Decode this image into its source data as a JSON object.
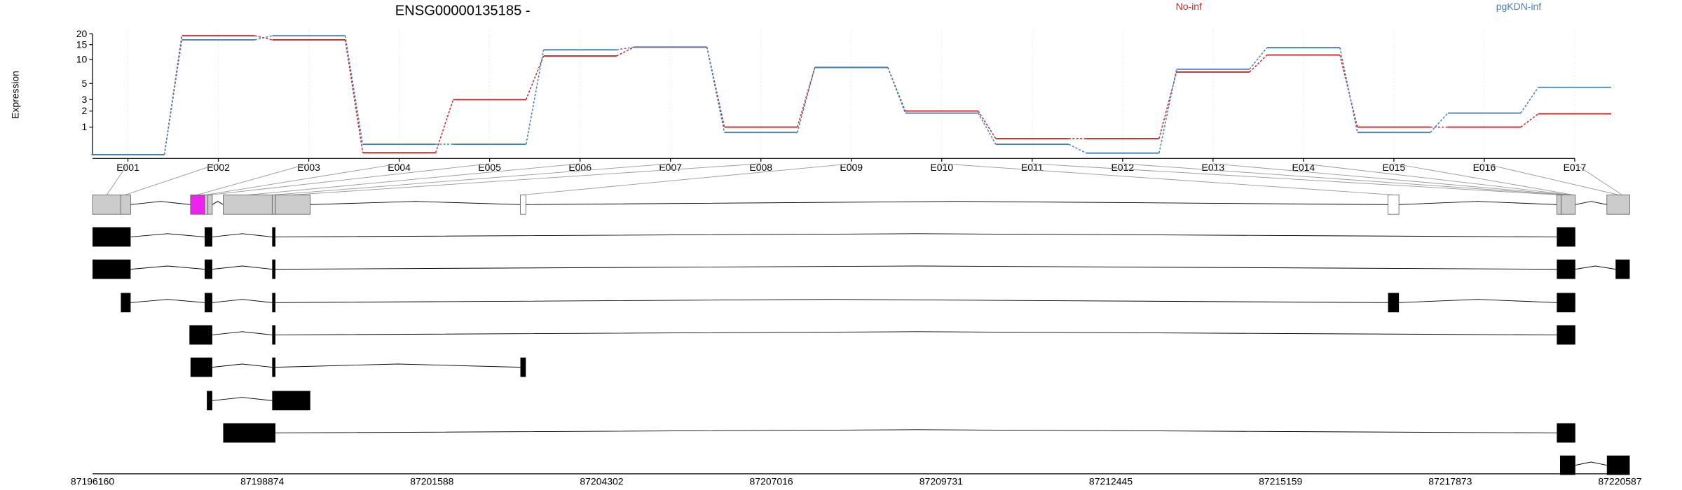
{
  "chart_data": [
    {
      "type": "line",
      "title": "ENSG00000135185 -",
      "y_label": "Expression",
      "categories": [
        "E001",
        "E002",
        "E003",
        "E004",
        "E005",
        "E006",
        "E007",
        "E008",
        "E009",
        "E010",
        "E011",
        "E012",
        "E013",
        "E014",
        "E015",
        "E016",
        "E017"
      ],
      "series": [
        {
          "name": "No-inf",
          "color": "#cd2626",
          "values": [
            0,
            19,
            17,
            0.05,
            3,
            11,
            14,
            1,
            8,
            2,
            0.5,
            0.5,
            7,
            11.3,
            1,
            1,
            1.8
          ]
        },
        {
          "name": "pgKDN-inf",
          "color": "#4682b4",
          "values": [
            0,
            17,
            19,
            0.3,
            0.3,
            13,
            14,
            0.75,
            8,
            1.85,
            0.3,
            0.04,
            7.6,
            13.8,
            0.75,
            1.85,
            4.45
          ]
        }
      ],
      "yscale": "log1p",
      "ylim": [
        0,
        22
      ],
      "yticks": [
        1,
        2,
        3,
        5,
        10,
        15,
        20
      ],
      "grid": true,
      "legend": "top-right"
    },
    {
      "type": "gene-model",
      "xlim": [
        87196160,
        87220587
      ],
      "xticks": [
        87196160,
        87198874,
        87201588,
        87204302,
        87207016,
        87209731,
        87212445,
        87215159,
        87217873,
        87220587
      ]
    }
  ]
}
